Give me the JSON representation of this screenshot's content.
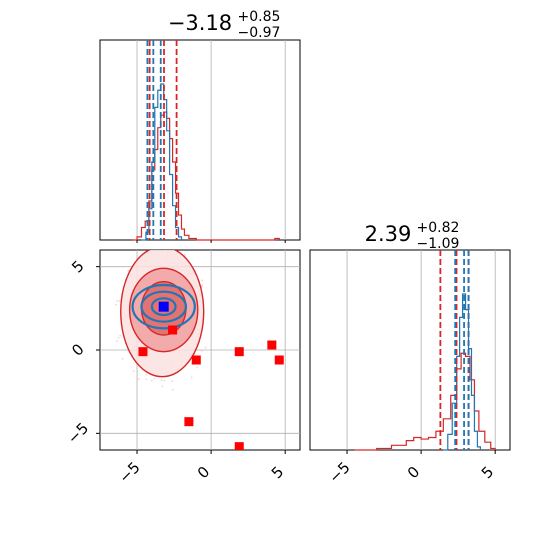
{
  "chart_data": {
    "type": "corner",
    "parameters": [
      {
        "title": {
          "main": "−3.18",
          "sup": "+0.85",
          "sub": "−0.97"
        },
        "median": -3.18,
        "err_plus": 0.85,
        "err_minus": 0.97
      },
      {
        "title": {
          "main": "2.39",
          "sup": "+0.82",
          "sub": "−1.09"
        },
        "median": 2.39,
        "err_plus": 0.82,
        "err_minus": 1.09
      }
    ],
    "x_range": [
      -7.5,
      6.0
    ],
    "y_range": [
      -6.0,
      6.0
    ],
    "ticks": [
      -5,
      0,
      5
    ],
    "tick_labels": [
      "−5",
      "0",
      "5"
    ],
    "grid": true,
    "colors": {
      "red": "#d62728",
      "blue": "#1f77b4",
      "marker": "#ff0000",
      "truth": "#0000ff",
      "fill": "#f4b8b8"
    },
    "hist_param1": {
      "red_quantiles": [
        -4.15,
        -3.18,
        -2.33
      ],
      "blue_quantiles": [
        -4.3,
        -3.9,
        -3.4
      ],
      "red_curve": [
        [
          -5.3,
          0.0
        ],
        [
          -5.0,
          0.02
        ],
        [
          -4.7,
          0.08
        ],
        [
          -4.45,
          0.12
        ],
        [
          -4.2,
          0.25
        ],
        [
          -4.0,
          0.45
        ],
        [
          -3.8,
          0.58
        ],
        [
          -3.6,
          0.72
        ],
        [
          -3.4,
          0.8
        ],
        [
          -3.2,
          0.82
        ],
        [
          -3.0,
          0.78
        ],
        [
          -2.8,
          0.65
        ],
        [
          -2.6,
          0.5
        ],
        [
          -2.4,
          0.3
        ],
        [
          -2.2,
          0.16
        ],
        [
          -2.0,
          0.07
        ],
        [
          -1.8,
          0.03
        ],
        [
          -1.5,
          0.01
        ],
        [
          -1.0,
          0.0
        ],
        [
          4.0,
          0.0
        ],
        [
          4.3,
          0.01
        ],
        [
          4.6,
          0.0
        ]
      ],
      "blue_curve": [
        [
          -4.7,
          0.0
        ],
        [
          -4.4,
          0.05
        ],
        [
          -4.2,
          0.2
        ],
        [
          -4.0,
          0.5
        ],
        [
          -3.8,
          0.85
        ],
        [
          -3.6,
          0.96
        ],
        [
          -3.4,
          1.0
        ],
        [
          -3.2,
          0.9
        ],
        [
          -3.0,
          0.7
        ],
        [
          -2.8,
          0.42
        ],
        [
          -2.6,
          0.22
        ],
        [
          -2.4,
          0.08
        ],
        [
          -2.2,
          0.02
        ],
        [
          -2.0,
          0.0
        ]
      ]
    },
    "hist_param2": {
      "red_quantiles": [
        1.3,
        2.39,
        3.21
      ],
      "blue_quantiles": [
        2.3,
        2.9,
        3.2
      ],
      "red_curve": [
        [
          -4.5,
          0.0
        ],
        [
          -3.0,
          0.01
        ],
        [
          -2.0,
          0.03
        ],
        [
          -1.0,
          0.06
        ],
        [
          -0.5,
          0.08
        ],
        [
          0.0,
          0.07
        ],
        [
          0.5,
          0.08
        ],
        [
          1.0,
          0.12
        ],
        [
          1.5,
          0.2
        ],
        [
          2.0,
          0.35
        ],
        [
          2.4,
          0.52
        ],
        [
          2.7,
          0.62
        ],
        [
          3.0,
          0.6
        ],
        [
          3.3,
          0.45
        ],
        [
          3.6,
          0.25
        ],
        [
          3.9,
          0.12
        ],
        [
          4.3,
          0.05
        ],
        [
          4.7,
          0.01
        ],
        [
          5.0,
          0.0
        ]
      ],
      "blue_curve": [
        [
          1.5,
          0.0
        ],
        [
          1.8,
          0.1
        ],
        [
          2.1,
          0.3
        ],
        [
          2.4,
          0.6
        ],
        [
          2.6,
          0.85
        ],
        [
          2.8,
          1.0
        ],
        [
          3.0,
          0.9
        ],
        [
          3.2,
          0.65
        ],
        [
          3.4,
          0.35
        ],
        [
          3.6,
          0.12
        ],
        [
          3.8,
          0.02
        ],
        [
          4.0,
          0.0
        ]
      ]
    },
    "square_markers": [
      [
        -4.6,
        -0.1
      ],
      [
        -2.6,
        1.2
      ],
      [
        -1.0,
        -0.6
      ],
      [
        1.9,
        -0.1
      ],
      [
        4.1,
        0.3
      ],
      [
        4.6,
        -0.6
      ],
      [
        -1.5,
        -4.3
      ],
      [
        1.9,
        -5.8
      ],
      [
        -3.2,
        2.6
      ]
    ],
    "truth_marker": [
      -3.2,
      2.6
    ],
    "red_contours": [
      {
        "cx": -3.3,
        "cy": 2.3,
        "rx": 2.8,
        "ry": 3.9
      },
      {
        "cx": -3.2,
        "cy": 2.4,
        "rx": 2.3,
        "ry": 2.5
      },
      {
        "cx": -3.2,
        "cy": 2.5,
        "rx": 1.5,
        "ry": 1.6
      }
    ],
    "blue_contours": [
      {
        "cx": -3.2,
        "cy": 2.6,
        "rx": 2.1,
        "ry": 1.3
      },
      {
        "cx": -3.2,
        "cy": 2.6,
        "rx": 1.5,
        "ry": 0.9
      },
      {
        "cx": -3.2,
        "cy": 2.6,
        "rx": 0.8,
        "ry": 0.5
      }
    ]
  }
}
